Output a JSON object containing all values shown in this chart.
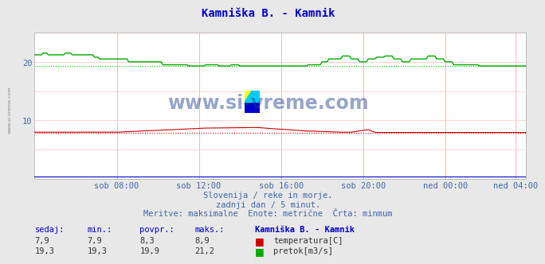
{
  "title": "Kamniška B. - Kamnik",
  "title_color": "#0000cc",
  "bg_color": "#e8e8e8",
  "plot_bg_color": "#ffffff",
  "grid_color_h": "#ffcccc",
  "grid_color_v": "#ffaaaa",
  "tick_color": "#4466aa",
  "text_color": "#4466aa",
  "watermark": "www.si-vreme.com",
  "watermark_color": "#1a3a8a",
  "subtitle1": "Slovenija / reke in morje.",
  "subtitle2": "zadnji dan / 5 minut.",
  "subtitle3": "Meritve: maksimalne  Enote: metrične  Črta: minmum",
  "footer_label1": "sedaj:",
  "footer_label2": "min.:",
  "footer_label3": "povpr.:",
  "footer_label4": "maks.:",
  "footer_station": "Kamniška B. - Kamnik",
  "temp_sedaj": "7,9",
  "temp_min": "7,9",
  "temp_povpr": "8,3",
  "temp_maks": "8,9",
  "temp_label": "temperatura[C]",
  "flow_sedaj": "19,3",
  "flow_min": "19,3",
  "flow_povpr": "19,9",
  "flow_maks": "21,2",
  "flow_label": "pretok[m3/s]",
  "temp_color": "#cc0000",
  "flow_color": "#00aa00",
  "min_temp_color": "#cc0000",
  "min_flow_color": "#00cc00",
  "blue_line_color": "#0000cc",
  "ylim": [
    0,
    25
  ],
  "ytick_vals": [
    10,
    20
  ],
  "n_points": 288,
  "temp_min_val": 7.9,
  "temp_max_val": 8.9,
  "flow_min_val": 19.3,
  "flow_max_val": 21.2,
  "x_tick_labels": [
    "sob 08:00",
    "sob 12:00",
    "sob 16:00",
    "sob 20:00",
    "ned 00:00",
    "ned 04:00"
  ],
  "x_tick_positions": [
    48,
    96,
    144,
    192,
    240,
    281
  ]
}
